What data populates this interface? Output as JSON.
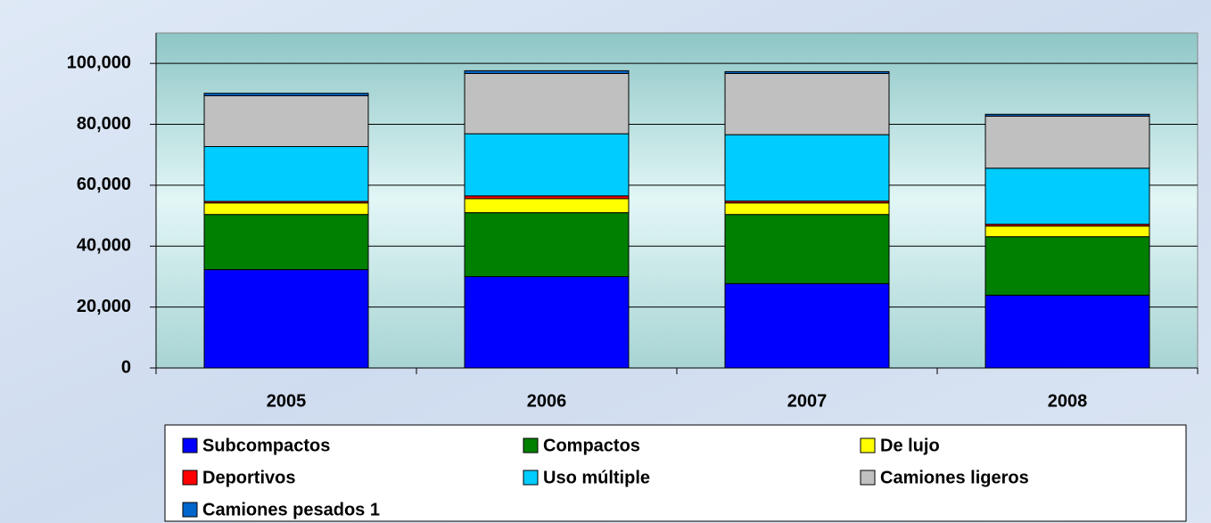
{
  "chart_data": {
    "type": "stacked_bar",
    "categories": [
      "2005",
      "2006",
      "2007",
      "2008"
    ],
    "series": [
      {
        "name": "Subcompactos",
        "color": "#0000ff",
        "values": [
          32300,
          30000,
          27700,
          23900
        ]
      },
      {
        "name": "Compactos",
        "color": "#008000",
        "values": [
          18100,
          21000,
          22700,
          19200
        ]
      },
      {
        "name": "De lujo",
        "color": "#ffff00",
        "values": [
          3800,
          4600,
          3800,
          3500
        ]
      },
      {
        "name": "Deportivos",
        "color": "#ff0000",
        "values": [
          500,
          900,
          600,
          600
        ]
      },
      {
        "name": "Uso múltiple",
        "color": "#00ccff",
        "values": [
          18000,
          20400,
          21800,
          18400
        ]
      },
      {
        "name": "Camiones ligeros",
        "color": "#c0c0c0",
        "values": [
          16700,
          19800,
          20100,
          17100
        ]
      },
      {
        "name": "Camiones pesados 1",
        "color": "#0066cc",
        "values": [
          800,
          900,
          600,
          600
        ]
      }
    ],
    "ylim": [
      0,
      110000
    ],
    "yticks": [
      0,
      {
        "value": 20000,
        "label": "20,000"
      },
      {
        "value": 40000,
        "label": "40,000"
      },
      {
        "value": 60000,
        "label": "60,000"
      },
      {
        "value": 80000,
        "label": "80,000"
      },
      {
        "value": 100000,
        "label": "100,000"
      }
    ],
    "grid": true
  }
}
